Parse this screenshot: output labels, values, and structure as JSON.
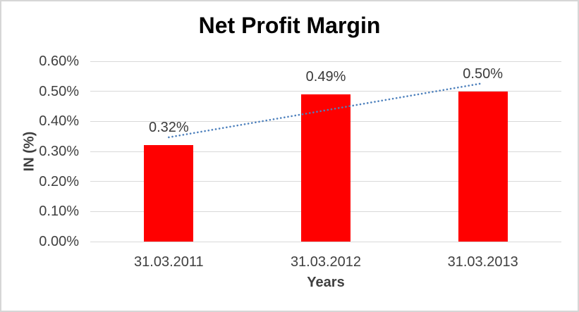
{
  "window": {
    "background": "#FFFFFF",
    "frame_border_color": "#D6D6D6"
  },
  "chart_data": {
    "type": "bar",
    "title": "Net Profit Margin",
    "xlabel": "Years",
    "ylabel": "IN (%)",
    "categories": [
      "31.03.2011",
      "31.03.2012",
      "31.03.2013"
    ],
    "series": [
      {
        "name": "Net Profit Margin",
        "values": [
          0.32,
          0.49,
          0.5
        ],
        "data_labels": [
          "0.32%",
          "0.49%",
          "0.50%"
        ],
        "color": "#FF0000"
      }
    ],
    "y_axis": {
      "min": 0,
      "max": 0.6,
      "tick_step": 0.1,
      "tick_labels": [
        "0.00%",
        "0.10%",
        "0.20%",
        "0.30%",
        "0.40%",
        "0.50%",
        "0.60%"
      ]
    },
    "gridlines": {
      "show": true,
      "color": "#D9D9D9"
    },
    "legend": "none",
    "trendline": {
      "type": "linear",
      "style": "dotted",
      "color": "#4E81BD",
      "start_value": 0.347,
      "end_value": 0.527
    },
    "text_color": "#3F3F3F",
    "title_color": "#000000"
  }
}
